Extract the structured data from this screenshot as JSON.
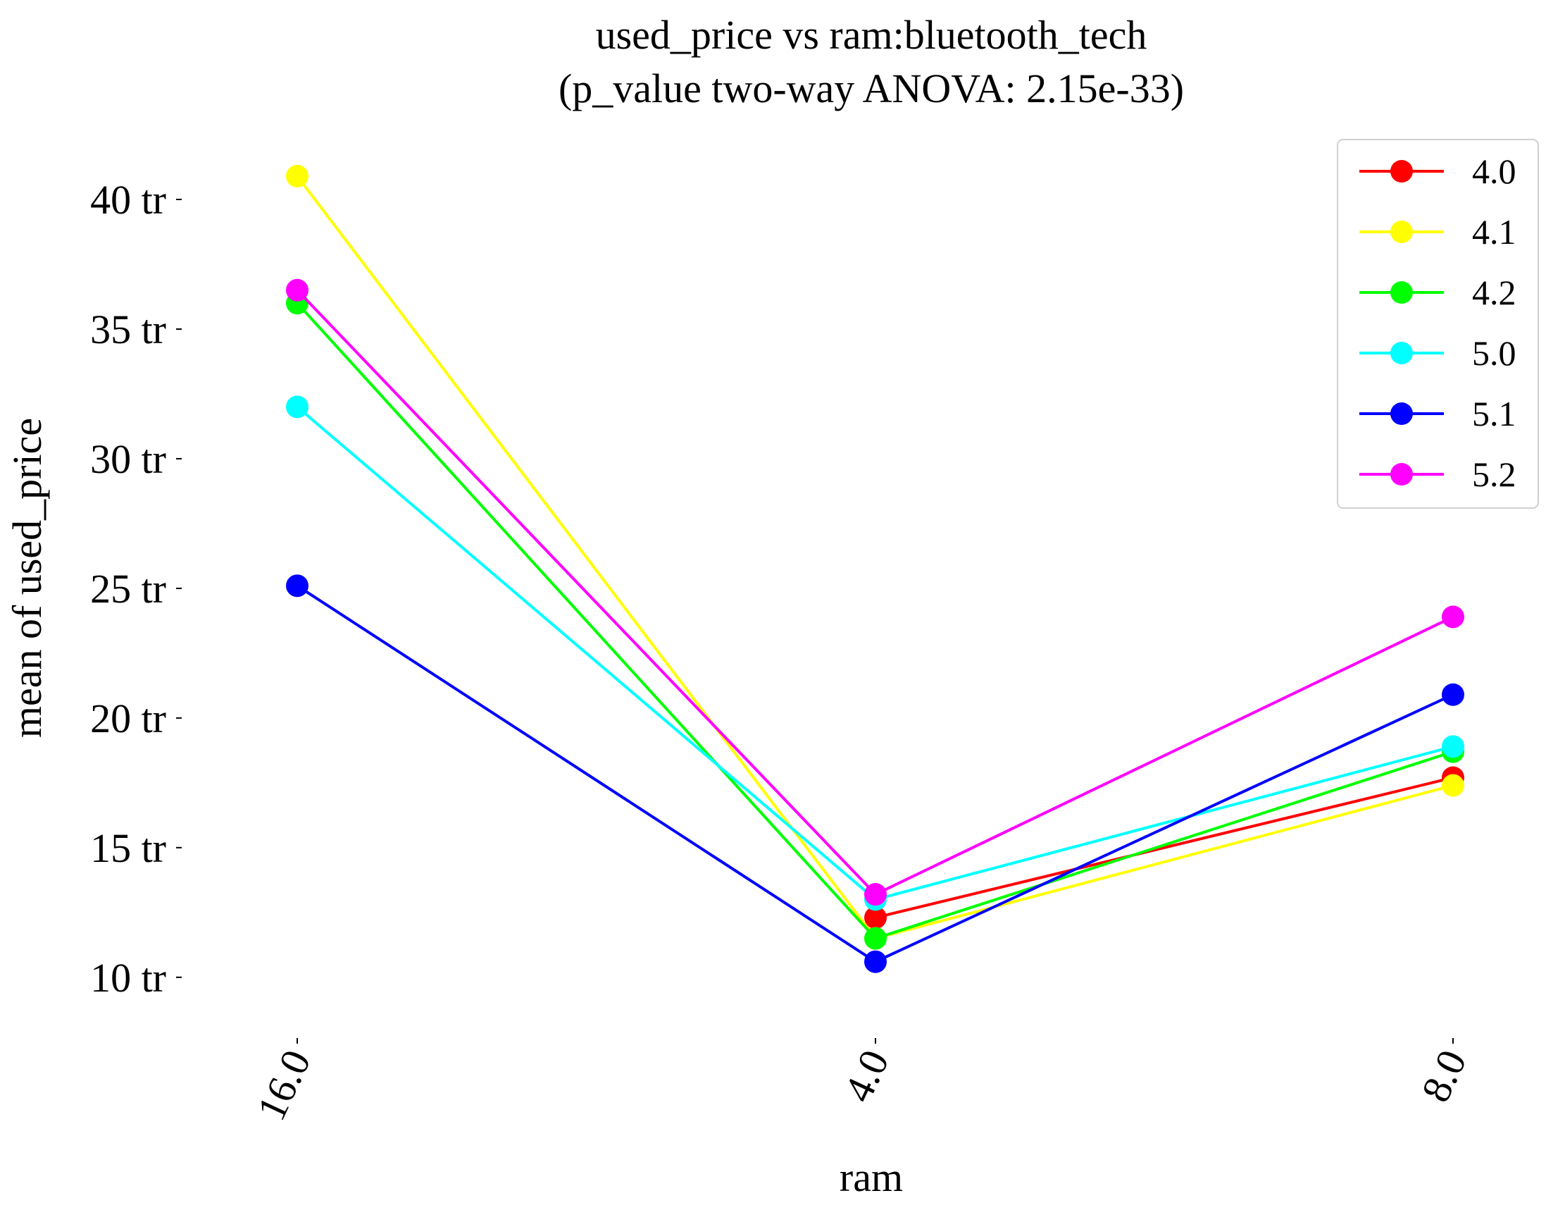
{
  "chart_data": {
    "type": "line",
    "title": "used_price vs ram:bluetooth_tech",
    "subtitle": "(p_value two-way ANOVA: 2.15e-33)",
    "xlabel": "ram",
    "ylabel": "mean of used_price",
    "categories": [
      "16.0",
      "4.0",
      "8.0"
    ],
    "yticks": [
      {
        "value": 10,
        "label": "10 tr"
      },
      {
        "value": 15,
        "label": "15 tr"
      },
      {
        "value": 20,
        "label": "20 tr"
      },
      {
        "value": 25,
        "label": "25 tr"
      },
      {
        "value": 30,
        "label": "30 tr"
      },
      {
        "value": 35,
        "label": "35 tr"
      },
      {
        "value": 40,
        "label": "40 tr"
      }
    ],
    "ylim": [
      8.2,
      42.8
    ],
    "grid": false,
    "legend_position": "top-right",
    "series": [
      {
        "name": "4.0",
        "color": "#ff0000",
        "values": [
          null,
          12.3,
          17.7
        ]
      },
      {
        "name": "4.1",
        "color": "#ffff00",
        "values": [
          40.9,
          11.5,
          17.4
        ]
      },
      {
        "name": "4.2",
        "color": "#00ff00",
        "values": [
          36.0,
          11.5,
          18.7
        ]
      },
      {
        "name": "5.0",
        "color": "#00ffff",
        "values": [
          32.0,
          13.0,
          18.9
        ]
      },
      {
        "name": "5.1",
        "color": "#0000ff",
        "values": [
          25.1,
          10.6,
          20.9
        ]
      },
      {
        "name": "5.2",
        "color": "#ff00ff",
        "values": [
          36.5,
          13.2,
          23.9
        ]
      }
    ]
  }
}
